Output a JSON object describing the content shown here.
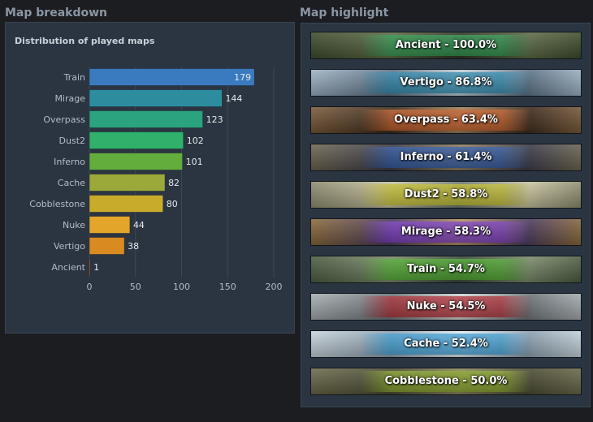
{
  "left_section": {
    "title": "Map breakdown"
  },
  "right_section": {
    "title": "Map highlight"
  },
  "chart_data": {
    "type": "bar",
    "orientation": "horizontal",
    "title": "Distribution of played maps",
    "categories": [
      "Train",
      "Mirage",
      "Overpass",
      "Dust2",
      "Inferno",
      "Cache",
      "Cobblestone",
      "Nuke",
      "Vertigo",
      "Ancient"
    ],
    "values": [
      179,
      144,
      123,
      102,
      101,
      82,
      80,
      44,
      38,
      1
    ],
    "bar_colors": [
      "#3a7bbf",
      "#2c8d9f",
      "#2aa37e",
      "#2fb06b",
      "#63ad3c",
      "#9aa93a",
      "#c9ab2c",
      "#e3a52a",
      "#d98b22",
      "#c8661f"
    ],
    "xlim": [
      0,
      200
    ],
    "xticks": [
      0,
      50,
      100,
      150,
      200
    ],
    "grid": true,
    "value_labels": true
  },
  "highlights": [
    {
      "label": "Ancient - 100.0%",
      "map": "Ancient",
      "percent": 100.0,
      "bg": [
        "#3d4a2c",
        "#5c6a45",
        "#2c3526"
      ],
      "band": "#2f9a50"
    },
    {
      "label": "Vertigo - 86.8%",
      "map": "Vertigo",
      "percent": 86.8,
      "bg": [
        "#9fb3c4",
        "#5d7388",
        "#c2cfd8"
      ],
      "band": "#2c8ab0"
    },
    {
      "label": "Overpass - 63.4%",
      "map": "Overpass",
      "percent": 63.4,
      "bg": [
        "#7a5a3a",
        "#3b2a1c",
        "#a0805a"
      ],
      "band": "#c9602a"
    },
    {
      "label": "Inferno - 61.4%",
      "map": "Inferno",
      "percent": 61.4,
      "bg": [
        "#6d6552",
        "#3a3a46",
        "#8c7d5e"
      ],
      "band": "#2f5aa8"
    },
    {
      "label": "Dust2 - 58.8%",
      "map": "Dust2",
      "percent": 58.8,
      "bg": [
        "#8b8a6c",
        "#c8c3a0",
        "#6d7a76"
      ],
      "band": "#c4c02a"
    },
    {
      "label": "Mirage - 58.3%",
      "map": "Mirage",
      "percent": 58.3,
      "bg": [
        "#8a6a3a",
        "#4a3a5a",
        "#b49060"
      ],
      "band": "#7c3cc8"
    },
    {
      "label": "Train - 54.7%",
      "map": "Train",
      "percent": 54.7,
      "bg": [
        "#4a5a40",
        "#7a8a6a",
        "#3a4a3a"
      ],
      "band": "#4fae2e"
    },
    {
      "label": "Nuke - 54.5%",
      "map": "Nuke",
      "percent": 54.5,
      "bg": [
        "#a8aeb2",
        "#6c7478",
        "#d4d6d6"
      ],
      "band": "#b02a32"
    },
    {
      "label": "Cache - 52.4%",
      "map": "Cache",
      "percent": 52.4,
      "bg": [
        "#c8d4dc",
        "#8ca0b0",
        "#e6ecf0"
      ],
      "band": "#3aa0d8"
    },
    {
      "label": "Cobblestone - 50.0%",
      "map": "Cobblestone",
      "percent": 50.0,
      "bg": [
        "#6a6a4a",
        "#4a4a34",
        "#8a865a"
      ],
      "band": "#8aa82a"
    }
  ]
}
